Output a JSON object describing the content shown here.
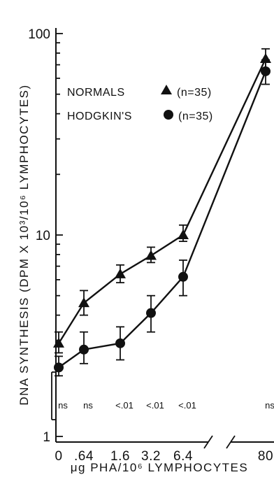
{
  "chart_data": {
    "type": "line",
    "y_scale": "log",
    "ylim": [
      1,
      100
    ],
    "ylabel": "DNA SYNTHESIS (DPM X 10³/10⁶ LYMPHOCYTES)",
    "xlabel": "μg PHA/10⁶ LYMPHOCYTES",
    "x": [
      0,
      0.64,
      1.6,
      3.2,
      6.4,
      80
    ],
    "x_tick_labels": [
      "0",
      ".64",
      "1.6",
      "3.2",
      "6.4",
      "80"
    ],
    "y_tick_labels": [
      "1",
      "10",
      "100"
    ],
    "y_ticks": [
      1,
      10,
      100
    ],
    "axis_break": "between 6.4 and 80",
    "series": [
      {
        "name": "NORMALS",
        "marker": "triangle",
        "legend_label": "NORMALS",
        "legend_n": "(n=35)",
        "values": [
          2.9,
          4.6,
          6.4,
          7.9,
          10.0,
          75
        ],
        "error_low": [
          2.6,
          4.0,
          5.8,
          7.3,
          9.3,
          66
        ],
        "error_high": [
          3.3,
          5.3,
          7.1,
          8.7,
          11.2,
          84
        ]
      },
      {
        "name": "HODGKIN'S",
        "marker": "circle",
        "legend_label": "HODGKIN'S",
        "legend_n": "(n=35)",
        "values": [
          2.2,
          2.7,
          2.9,
          4.1,
          6.2,
          65
        ],
        "error_low": [
          2.0,
          2.3,
          2.4,
          3.3,
          5.0,
          56
        ],
        "error_high": [
          2.5,
          3.3,
          3.5,
          5.0,
          7.5,
          74
        ]
      }
    ],
    "p_values": [
      "ns",
      "ns",
      "<.01",
      "<.01",
      "<.01",
      "ns"
    ],
    "legend_position": "top-left",
    "grid": false
  }
}
